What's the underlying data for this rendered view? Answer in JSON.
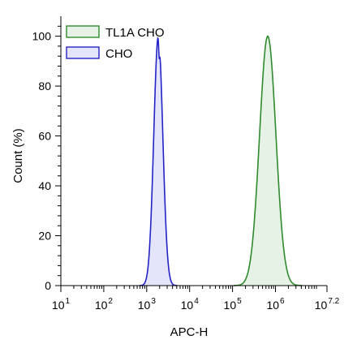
{
  "chart_data": {
    "type": "area",
    "title": "",
    "xlabel": "APC-H",
    "ylabel": "Count (%)",
    "x_scale": "log10",
    "xlim": [
      1,
      7.2
    ],
    "ylim": [
      0,
      108
    ],
    "x_ticks": [
      {
        "base": "10",
        "exp": "1",
        "value": 1
      },
      {
        "base": "10",
        "exp": "2",
        "value": 2
      },
      {
        "base": "10",
        "exp": "3",
        "value": 3
      },
      {
        "base": "10",
        "exp": "4",
        "value": 4
      },
      {
        "base": "10",
        "exp": "5",
        "value": 5
      },
      {
        "base": "10",
        "exp": "6",
        "value": 6
      },
      {
        "base": "10",
        "exp": "7.2",
        "value": 7.2
      }
    ],
    "y_ticks": [
      "0",
      "20",
      "40",
      "60",
      "80",
      "100"
    ],
    "y_tick_values": [
      0,
      20,
      40,
      60,
      80,
      100
    ],
    "grid": false,
    "legend_position": "top-left",
    "series": [
      {
        "name": "TL1A CHO",
        "color": "#2e8b2e",
        "fill": "#e6f2e6",
        "peak_log_x": 5.82,
        "peak_y": 100,
        "sigma_log": 0.19
      },
      {
        "name": "CHO",
        "color": "#2323c8",
        "fill": "#e4e4fb",
        "peak_log_x": 3.27,
        "peak_y": 100,
        "sigma_log": 0.105,
        "dip_log_x": 3.29,
        "dip_y": 93
      }
    ]
  }
}
